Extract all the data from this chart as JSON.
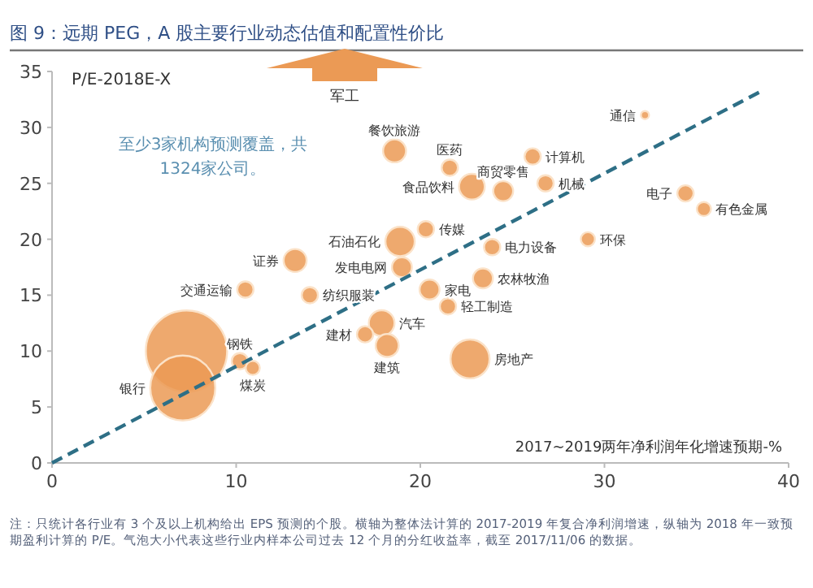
{
  "chart_data": {
    "type": "bubble",
    "title": "图 9：远期 PEG，A 股主要行业动态估值和配置性价比",
    "ylabel": "P/E-2018E-X",
    "xlabel": "2017~2019两年净利润年化增速预期-%",
    "xlim": [
      0,
      40
    ],
    "xticks": [
      0,
      10,
      20,
      30,
      40
    ],
    "ylim": [
      0,
      35
    ],
    "yticks": [
      0,
      5,
      10,
      15,
      20,
      25,
      30,
      35
    ],
    "grid": false,
    "series": [
      {
        "color": "#eb9a55",
        "x": [
          18.6,
          21.6,
          22.8,
          24.5,
          26.1,
          26.8,
          32.2,
          34.4,
          35.4,
          20.3,
          23.9,
          29.1,
          13.2,
          18.9,
          19.0,
          10.5,
          14.0,
          20.5,
          23.4,
          21.5,
          17.9,
          17.0,
          18.2,
          22.7,
          10.2,
          10.9,
          7.3,
          7.1
        ],
        "values": [
          27.9,
          26.4,
          24.7,
          24.3,
          27.4,
          25.0,
          31.1,
          24.1,
          22.7,
          20.9,
          19.3,
          20.0,
          18.1,
          19.8,
          17.5,
          15.5,
          15.0,
          15.5,
          16.5,
          14.0,
          12.5,
          11.5,
          10.5,
          9.3,
          9.1,
          8.5,
          10.0,
          6.7
        ],
        "sizes": [
          0.08,
          0.04,
          0.1,
          0.06,
          0.04,
          0.04,
          0.01,
          0.04,
          0.03,
          0.04,
          0.04,
          0.03,
          0.08,
          0.13,
          0.06,
          0.04,
          0.04,
          0.06,
          0.06,
          0.04,
          0.1,
          0.04,
          0.08,
          0.23,
          0.04,
          0.03,
          1,
          0.64
        ]
      },
      {
        "type": "line",
        "color": "#2e6f86",
        "line_style": "dashed",
        "x": [
          0,
          38.7
        ],
        "values": [
          0,
          33.4
        ]
      }
    ],
    "annotations": [
      {
        "text": "餐饮旅游",
        "x": 18.6,
        "y": 27.9
      },
      {
        "text": "医药",
        "x": 21.6,
        "y": 26.4
      },
      {
        "text": "食品饮料",
        "x": 22.8,
        "y": 24.7
      },
      {
        "text": "商贸零售",
        "x": 24.5,
        "y": 24.3
      },
      {
        "text": "计算机",
        "x": 26.1,
        "y": 27.4
      },
      {
        "text": "机械",
        "x": 26.8,
        "y": 25.0
      },
      {
        "text": "通信",
        "x": 32.2,
        "y": 31.1
      },
      {
        "text": "电子",
        "x": 34.4,
        "y": 24.1
      },
      {
        "text": "有色金属",
        "x": 35.4,
        "y": 22.7
      },
      {
        "text": "传媒",
        "x": 20.3,
        "y": 20.9
      },
      {
        "text": "电力设备",
        "x": 23.9,
        "y": 19.3
      },
      {
        "text": "环保",
        "x": 29.1,
        "y": 20.0
      },
      {
        "text": "证券",
        "x": 13.2,
        "y": 18.1
      },
      {
        "text": "石油石化",
        "x": 18.9,
        "y": 19.8
      },
      {
        "text": "发电电网",
        "x": 19.0,
        "y": 17.5
      },
      {
        "text": "交通运输",
        "x": 10.5,
        "y": 15.5
      },
      {
        "text": "纺织服装",
        "x": 14.0,
        "y": 15.0
      },
      {
        "text": "家电",
        "x": 20.5,
        "y": 15.5
      },
      {
        "text": "农林牧渔",
        "x": 23.4,
        "y": 16.5
      },
      {
        "text": "轻工制造",
        "x": 21.5,
        "y": 14.0
      },
      {
        "text": "汽车",
        "x": 17.9,
        "y": 12.5
      },
      {
        "text": "建材",
        "x": 17.0,
        "y": 11.5
      },
      {
        "text": "建筑",
        "x": 18.2,
        "y": 10.5
      },
      {
        "text": "房地产",
        "x": 22.7,
        "y": 9.3
      },
      {
        "text": "钢铁",
        "x": 10.2,
        "y": 9.1
      },
      {
        "text": "煤炭",
        "x": 10.9,
        "y": 8.5
      },
      {
        "text": "银行",
        "x": 7.1,
        "y": 6.7
      },
      "军工",
      "至少3家机构预测覆盖，共1324家公司。",
      "注：只统计各行业有 3 个及以上机构给出 EPS 预测的个股。横轴为整体法计算的 2017-2019 年复合净利润增速，纵轴为 2018 年一致预期盈利计算的 P/E。气泡大小代表这些行业内样本公司过去 12 个月的分红收益率，截至 2017/11/06 的数据。"
    ]
  }
}
